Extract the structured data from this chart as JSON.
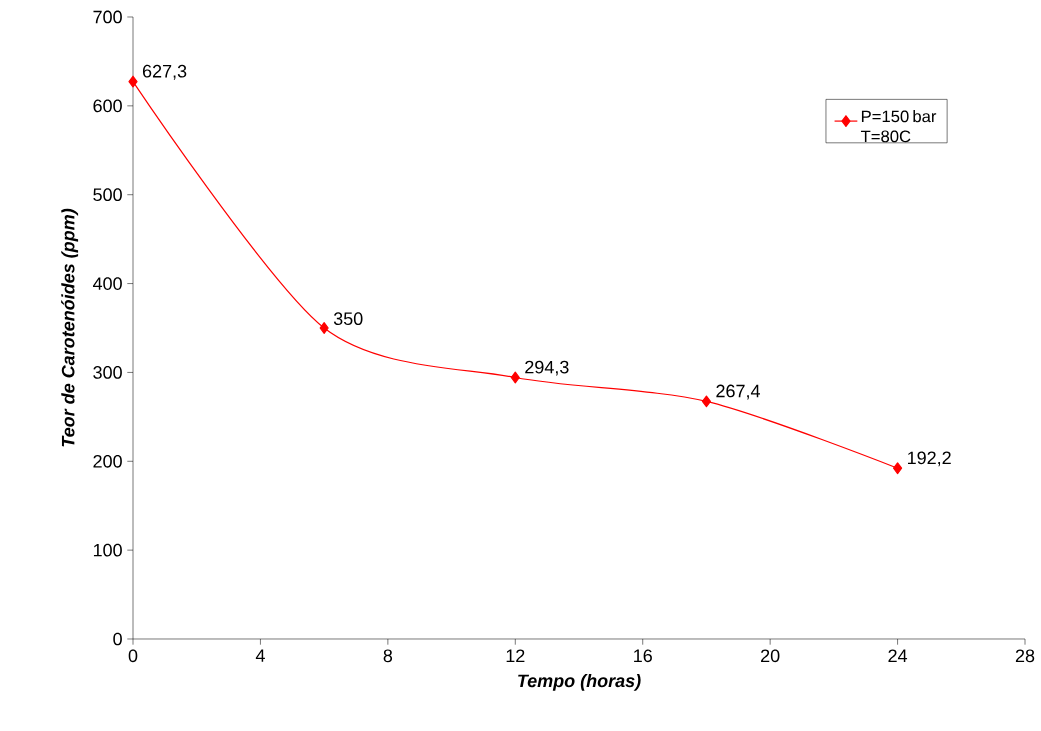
{
  "chart_data": {
    "type": "line",
    "xlabel": "Tempo (horas)",
    "ylabel": "Teor de Carotenóides (ppm)",
    "x": [
      0,
      6,
      12,
      18,
      24
    ],
    "series": [
      {
        "name": "P=150 bar T=80C",
        "color": "#ff0000",
        "values": [
          627.3,
          350,
          294.3,
          267.4,
          192.2
        ],
        "value_labels": [
          "627,3",
          "350",
          "294,3",
          "267,4",
          "192,2"
        ]
      }
    ],
    "xlim": [
      0,
      28
    ],
    "xticks": [
      0,
      4,
      8,
      12,
      16,
      20,
      24,
      28
    ],
    "ylim": [
      0,
      700
    ],
    "yticks": [
      0,
      100,
      200,
      300,
      400,
      500,
      600,
      700
    ],
    "grid": false,
    "legend": "top right",
    "marker": "diamond",
    "line_style": "solid"
  }
}
